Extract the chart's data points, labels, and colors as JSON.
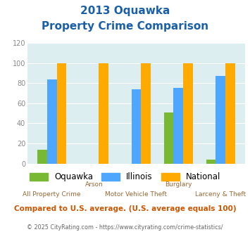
{
  "title_line1": "2013 Oquawka",
  "title_line2": "Property Crime Comparison",
  "x_labels_top": [
    "",
    "Arson",
    "",
    "Burglary",
    ""
  ],
  "x_labels_bottom": [
    "All Property Crime",
    "",
    "Motor Vehicle Theft",
    "",
    "Larceny & Theft"
  ],
  "oquawka": [
    14,
    0,
    0,
    51,
    4
  ],
  "illinois": [
    84,
    0,
    74,
    75,
    87
  ],
  "national": [
    100,
    100,
    100,
    100,
    100
  ],
  "colors": {
    "oquawka": "#78b833",
    "illinois": "#4da6ff",
    "national": "#ffaa00"
  },
  "ylim": [
    0,
    120
  ],
  "yticks": [
    0,
    20,
    40,
    60,
    80,
    100,
    120
  ],
  "bg_color": "#ddeef0",
  "title_color": "#1a5fa8",
  "xlabel_color": "#996633",
  "footer_text": "Compared to U.S. average. (U.S. average equals 100)",
  "credit_text": "© 2025 CityRating.com - https://www.cityrating.com/crime-statistics/",
  "footer_color": "#cc5500",
  "credit_color": "#666666"
}
